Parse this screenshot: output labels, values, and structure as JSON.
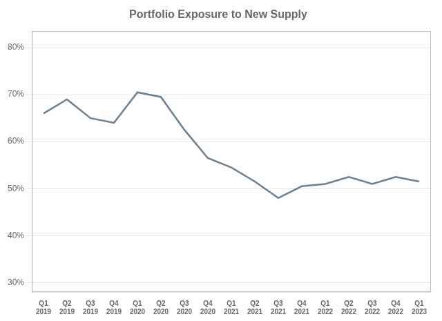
{
  "chart_data": {
    "type": "line",
    "title": "Portfolio Exposure to New Supply",
    "categories": [
      [
        "Q1",
        "2019"
      ],
      [
        "Q2",
        "2019"
      ],
      [
        "Q3",
        "2019"
      ],
      [
        "Q4",
        "2019"
      ],
      [
        "Q1",
        "2020"
      ],
      [
        "Q2",
        "2020"
      ],
      [
        "Q3",
        "2020"
      ],
      [
        "Q4",
        "2020"
      ],
      [
        "Q1",
        "2021"
      ],
      [
        "Q2",
        "2021"
      ],
      [
        "Q3",
        "2021"
      ],
      [
        "Q4",
        "2021"
      ],
      [
        "Q1",
        "2022"
      ],
      [
        "Q2",
        "2022"
      ],
      [
        "Q3",
        "2022"
      ],
      [
        "Q4",
        "2022"
      ],
      [
        "Q1",
        "2023"
      ]
    ],
    "values": [
      0.66,
      0.69,
      0.65,
      0.64,
      0.705,
      0.695,
      0.625,
      0.565,
      0.545,
      0.515,
      0.48,
      0.505,
      0.51,
      0.525,
      0.51,
      0.525,
      0.515
    ],
    "color": "#6b7f8e",
    "ylim": [
      0.28,
      0.835
    ],
    "yticks": [
      {
        "value": 0.3,
        "label": "30%"
      },
      {
        "value": 0.4,
        "label": "40%"
      },
      {
        "value": 0.5,
        "label": "50%"
      },
      {
        "value": 0.6,
        "label": "60%"
      },
      {
        "value": 0.7,
        "label": "70%"
      },
      {
        "value": 0.8,
        "label": "80%"
      }
    ],
    "grid": true
  }
}
